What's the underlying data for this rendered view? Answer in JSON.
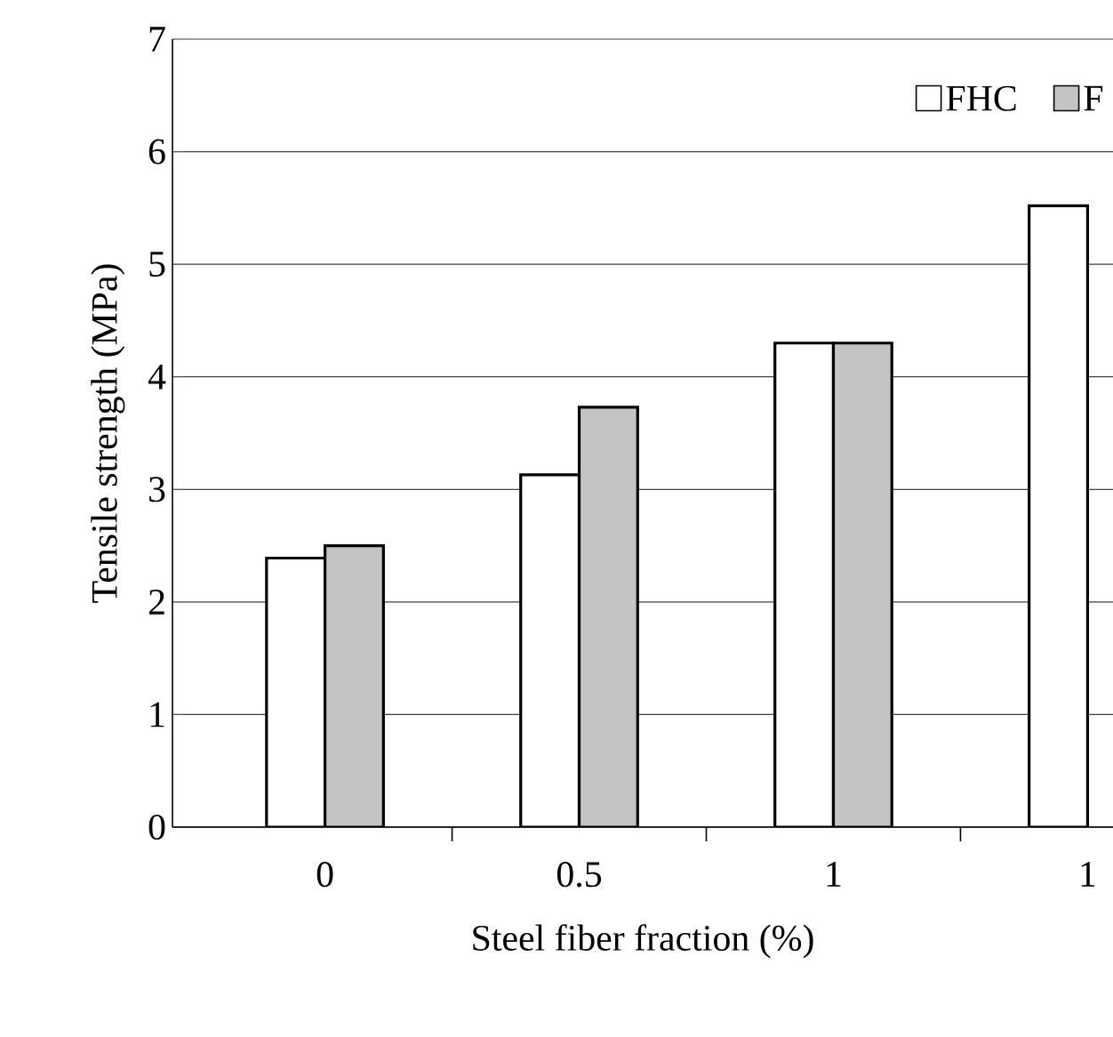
{
  "chart_data": {
    "type": "bar",
    "xlabel": "Steel fiber fraction (%)",
    "ylabel": "Tensile strength (MPa)",
    "categories": [
      "0",
      "0.5",
      "1",
      "1"
    ],
    "series": [
      {
        "name": "FHC",
        "color": "#ffffff",
        "values": [
          2.39,
          3.13,
          4.3,
          5.52
        ]
      },
      {
        "name": "F",
        "color": "#c4c4c4",
        "values": [
          2.5,
          3.73,
          4.3,
          null
        ]
      }
    ],
    "ylim": [
      0,
      7
    ],
    "yticks": [
      0,
      1,
      2,
      3,
      4,
      5,
      6,
      7
    ],
    "grid": "y",
    "legend": "top right"
  }
}
